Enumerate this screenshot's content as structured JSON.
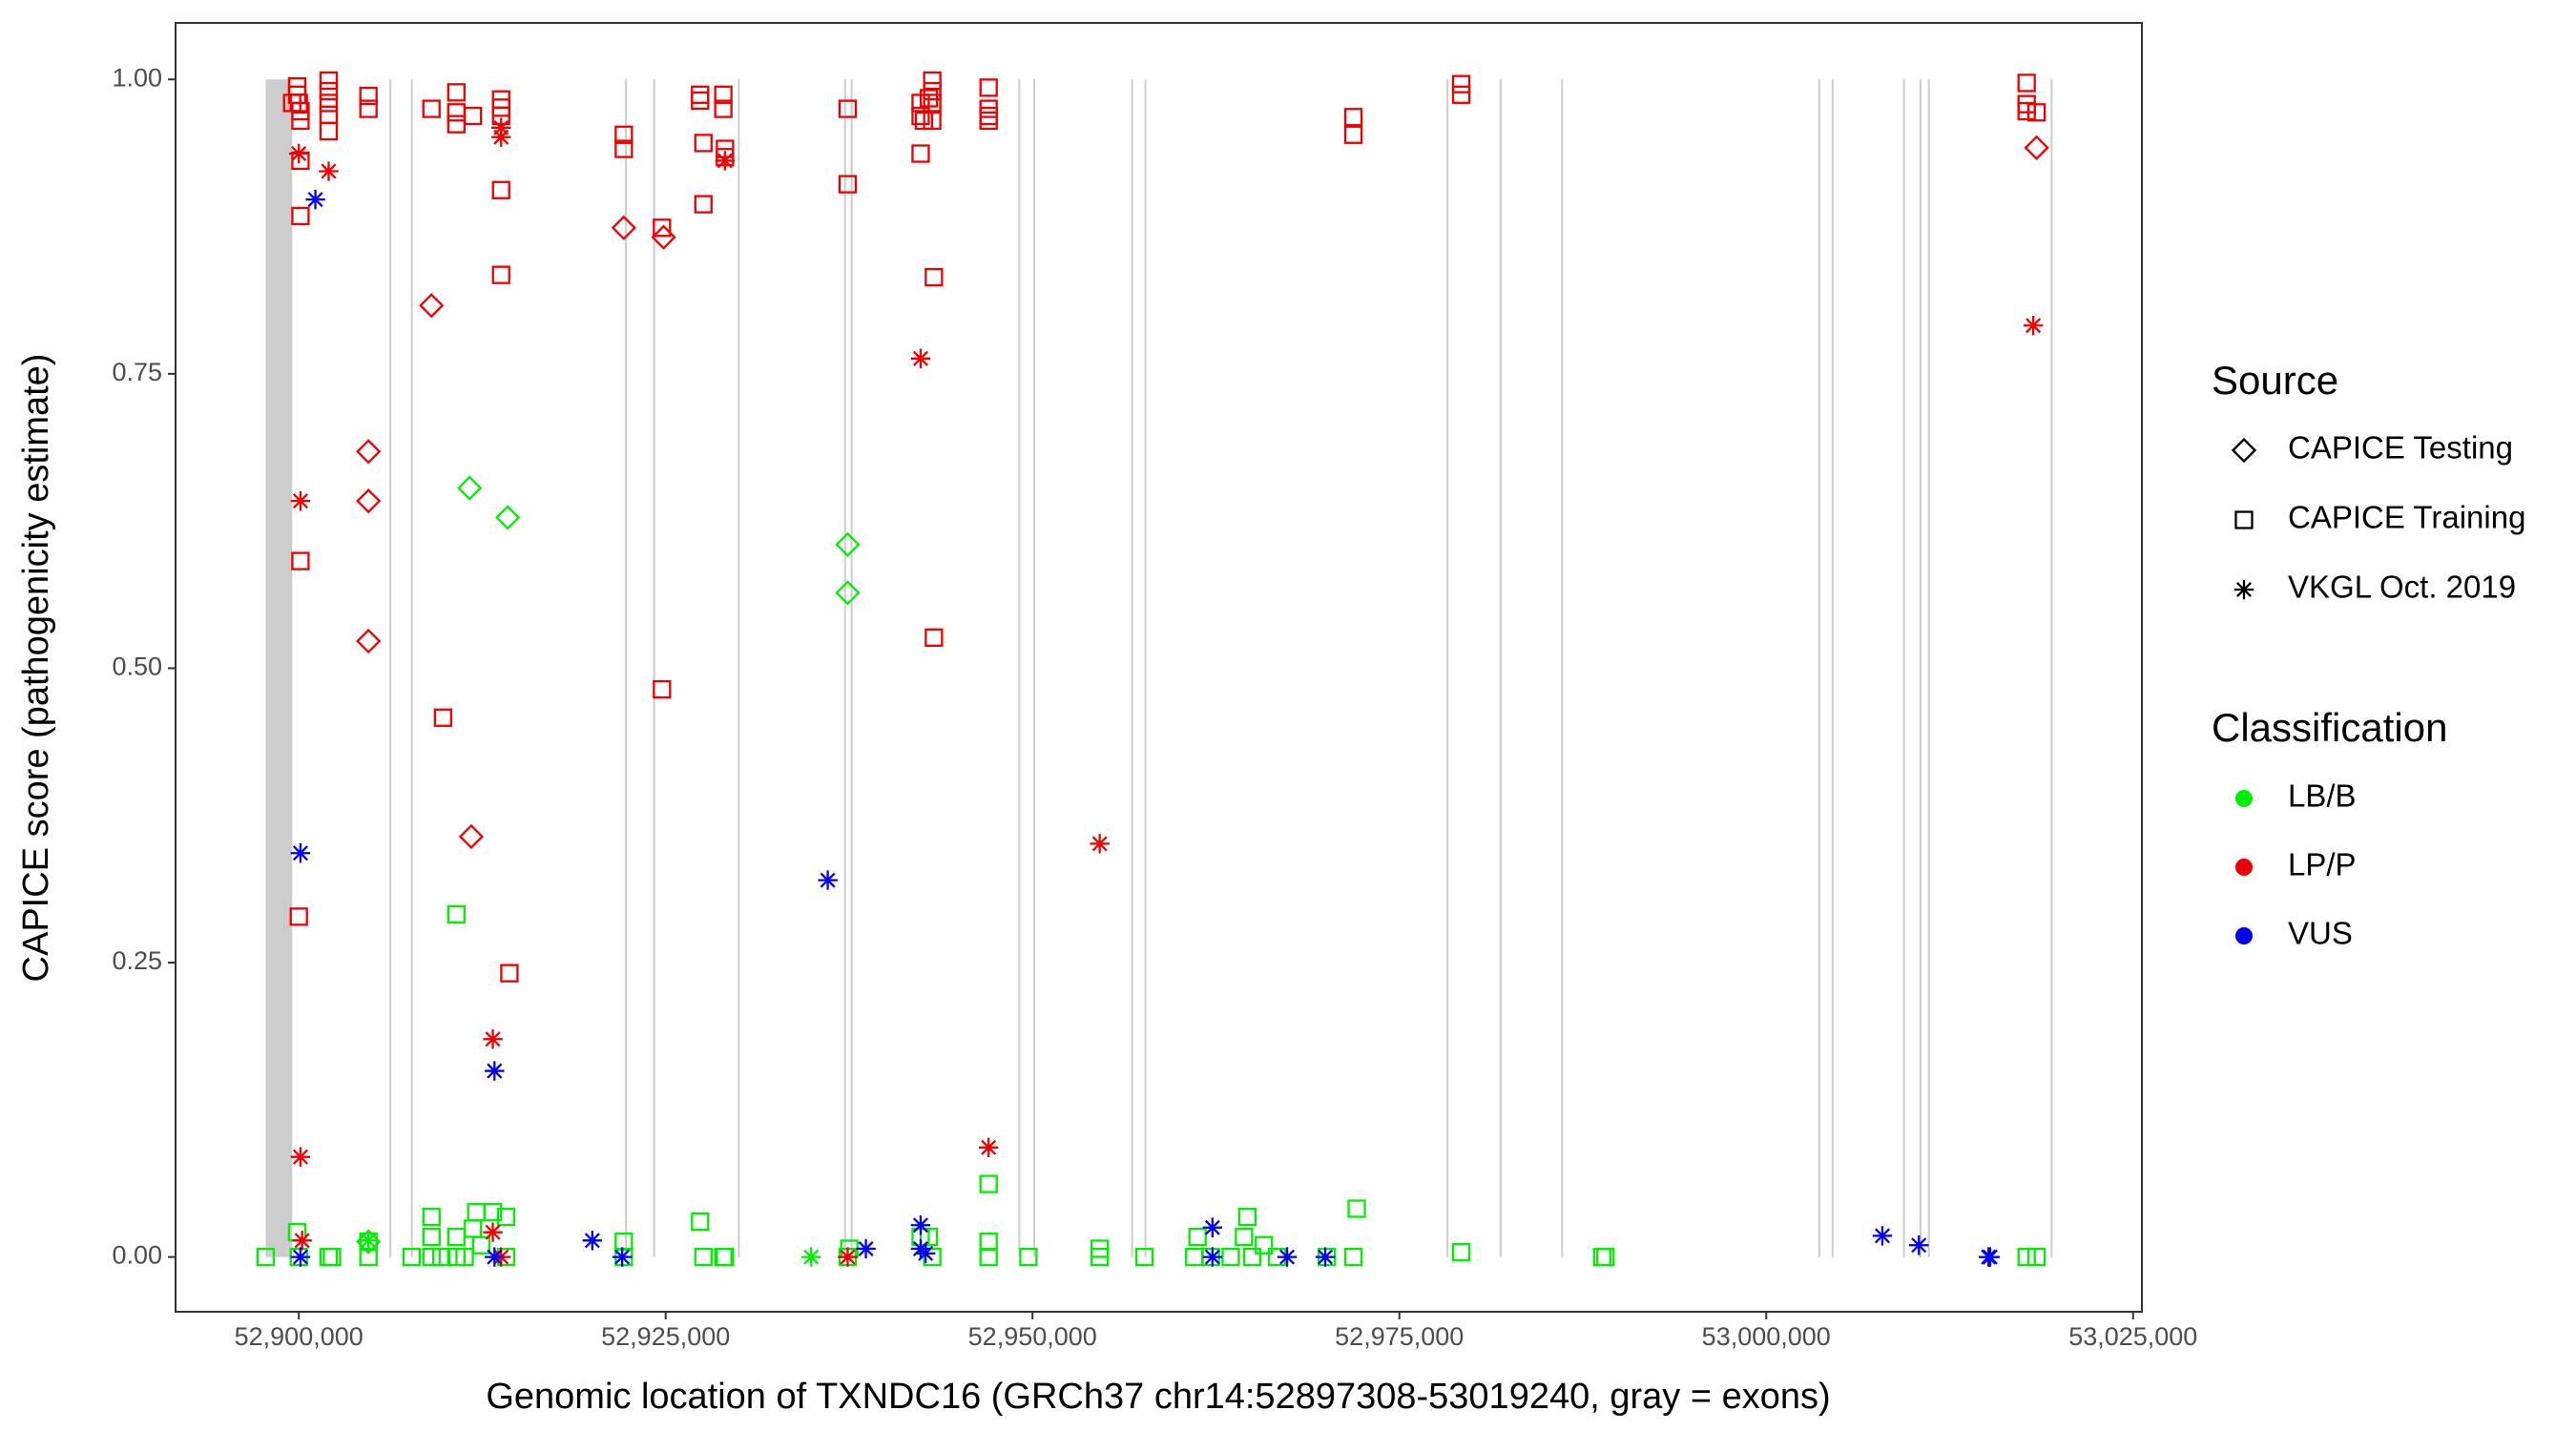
{
  "chart_data": {
    "type": "scatter",
    "xlabel": "Genomic location of TXNDC16 (GRCh37 chr14:52897308-53019240, gray = exons)",
    "ylabel": "CAPICE score (pathogenicity estimate)",
    "xlim": [
      52891600,
      53025600
    ],
    "ylim": [
      -0.0465,
      1.048
    ],
    "xticks": [
      {
        "value": 52900000,
        "label": "52,900,000"
      },
      {
        "value": 52925000,
        "label": "52,925,000"
      },
      {
        "value": 52950000,
        "label": "52,950,000"
      },
      {
        "value": 52975000,
        "label": "52,975,000"
      },
      {
        "value": 53000000,
        "label": "53,000,000"
      },
      {
        "value": 53025000,
        "label": "53,025,000"
      }
    ],
    "yticks": [
      {
        "value": 0,
        "label": "0.00"
      },
      {
        "value": 0.25,
        "label": "0.25"
      },
      {
        "value": 0.5,
        "label": "0.50"
      },
      {
        "value": 0.75,
        "label": "0.75"
      },
      {
        "value": 1,
        "label": "1.00"
      }
    ],
    "grid": false,
    "exon_color": "#cccccc",
    "exons": [
      [
        52897738,
        52899548
      ],
      [
        52906170,
        52906270
      ],
      [
        52907640,
        52907740
      ],
      [
        52922230,
        52922330
      ],
      [
        52924150,
        52924250
      ],
      [
        52929920,
        52930020
      ],
      [
        52937160,
        52937260
      ],
      [
        52937610,
        52937710
      ],
      [
        52949035,
        52949135
      ],
      [
        52950050,
        52950150
      ],
      [
        52956725,
        52956825
      ],
      [
        52957630,
        52957730
      ],
      [
        52978215,
        52978315
      ],
      [
        52981835,
        52981935
      ],
      [
        52986020,
        52986120
      ],
      [
        53003550,
        53003650
      ],
      [
        53004455,
        53004555
      ],
      [
        53009320,
        53009420
      ],
      [
        53010450,
        53010550
      ],
      [
        53011015,
        53011115
      ],
      [
        53019385,
        53019485
      ]
    ],
    "source_legend": {
      "title": "Source",
      "entries": [
        {
          "name": "CAPICE Testing",
          "shape": "diamond"
        },
        {
          "name": "CAPICE Training",
          "shape": "square"
        },
        {
          "name": "VKGL Oct. 2019",
          "shape": "asterisk"
        }
      ]
    },
    "class_legend": {
      "title": "Classification",
      "entries": [
        {
          "name": "LB/B",
          "color": "#00ee00"
        },
        {
          "name": "LP/P",
          "color": "#ee0000"
        },
        {
          "name": "VUS",
          "color": "#0000ee"
        }
      ]
    },
    "series": [
      {
        "source": "CAPICE Training",
        "classification": "LP/P",
        "x": [
          52899887,
          52899887,
          52900000,
          52900113,
          52900113,
          52900113,
          52900113,
          52900113,
          52900000,
          52899548,
          52902034,
          52902034,
          52902034,
          52902034,
          52902034,
          52904746,
          52904746,
          52909040,
          52910735,
          52910735,
          52910735,
          52911865,
          52913786,
          52913786,
          52913786,
          52913786,
          52913786,
          52914351,
          52909831,
          52922148,
          52922148,
          52924747,
          52924747,
          52927346,
          52927346,
          52927572,
          52927572,
          52928928,
          52928928,
          52929041,
          52929041,
          52937403,
          52937403,
          52942375,
          52942375,
          52942375,
          52942601,
          52942940,
          52943166,
          52943166,
          52943166,
          52943166,
          52943279,
          52943279,
          52947008,
          52947008,
          52947008,
          52947008,
          52971868,
          52971868,
          52979213,
          52979213,
          53017746,
          53017746,
          53017746,
          53018424
        ],
        "y": [
          0.994,
          0.987,
          0.98,
          0.973,
          0.965,
          0.931,
          0.884,
          0.591,
          0.289,
          0.98,
          0.999,
          0.99,
          0.98,
          0.97,
          0.956,
          0.986,
          0.975,
          0.975,
          0.989,
          0.972,
          0.962,
          0.969,
          0.983,
          0.976,
          0.969,
          0.906,
          0.834,
          0.241,
          0.458,
          0.953,
          0.941,
          0.874,
          0.482,
          0.987,
          0.982,
          0.946,
          0.894,
          0.987,
          0.975,
          0.941,
          0.934,
          0.975,
          0.911,
          0.98,
          0.969,
          0.937,
          0.965,
          0.984,
          0.999,
          0.99,
          0.98,
          0.965,
          0.832,
          0.526,
          0.993,
          0.975,
          0.969,
          0.965,
          0.968,
          0.953,
          0.996,
          0.987,
          0.997,
          0.979,
          0.973,
          0.972
        ]
      },
      {
        "source": "CAPICE Training",
        "classification": "LB/B",
        "x": [
          52897740,
          52899887,
          52900000,
          52902034,
          52902260,
          52904746,
          52904746,
          52907684,
          52909040,
          52909040,
          52909040,
          52909718,
          52910735,
          52910735,
          52910735,
          52911300,
          52911865,
          52912091,
          52912430,
          52913221,
          52914125,
          52914125,
          52922148,
          52922148,
          52927346,
          52927572,
          52928928,
          52929041,
          52937403,
          52937516,
          52942375,
          52942940,
          52943166,
          52947008,
          52947008,
          52947008,
          52949720,
          52954579,
          52954579,
          52957630,
          52961020,
          52961246,
          52962150,
          52963506,
          52964410,
          52964636,
          52964975,
          52965766,
          52966670,
          52970060,
          52971868,
          52972094,
          52979213,
          52988818,
          52989044,
          53017746,
          53018424
        ],
        "y": [
          0,
          0.021,
          0,
          0,
          0,
          0.013,
          0,
          0,
          0.034,
          0.017,
          0,
          0,
          0.291,
          0.017,
          0,
          0,
          0.024,
          0.038,
          0.01,
          0.038,
          0.034,
          0,
          0.013,
          0,
          0.03,
          0,
          0,
          0,
          0,
          0.007,
          0.017,
          0.017,
          0,
          0.062,
          0.013,
          0,
          0,
          0.007,
          0,
          0,
          0,
          0.017,
          0,
          0,
          0.017,
          0.034,
          0,
          0.01,
          0,
          0,
          0,
          0.041,
          0.004,
          0,
          0,
          0,
          0
        ]
      },
      {
        "source": "CAPICE Testing",
        "classification": "LP/P",
        "x": [
          52904746,
          52904746,
          52904746,
          52909040,
          52911752,
          52922148,
          52924860,
          53018424
        ],
        "y": [
          0.684,
          0.642,
          0.523,
          0.808,
          0.357,
          0.874,
          0.866,
          0.942
        ]
      },
      {
        "source": "CAPICE Testing",
        "classification": "LB/B",
        "x": [
          52911639,
          52914238,
          52937403,
          52937403,
          52904746
        ],
        "y": [
          0.653,
          0.628,
          0.605,
          0.564,
          0.013
        ]
      },
      {
        "source": "VKGL Oct. 2019",
        "classification": "LP/P",
        "x": [
          52900000,
          52900113,
          52900113,
          52900226,
          52902034,
          52913786,
          52913786,
          52913221,
          52913221,
          52913786,
          52929041,
          52937403,
          52942375,
          52947008,
          52954579,
          53018198
        ],
        "y": [
          0.937,
          0.642,
          0.085,
          0.014,
          0.922,
          0.959,
          0.951,
          0.185,
          0.021,
          0,
          0.931,
          0,
          0.763,
          0.093,
          0.351,
          0.791
        ]
      },
      {
        "source": "VKGL Oct. 2019",
        "classification": "VUS",
        "x": [
          52901130,
          52900113,
          52900113,
          52913334,
          52913334,
          52920001,
          52922035,
          52936047,
          52938646,
          52942375,
          52942375,
          52942714,
          52962263,
          52962263,
          52967348,
          52969947,
          53007915,
          53010401,
          53015147,
          53015260
        ],
        "y": [
          0.898,
          0.343,
          0,
          0.158,
          0,
          0.014,
          0,
          0.32,
          0.007,
          0.027,
          0.007,
          0.003,
          0.025,
          0,
          0,
          0,
          0.018,
          0.01,
          0,
          0
        ]
      },
      {
        "source": "VKGL Oct. 2019",
        "classification": "LB/B",
        "x": [
          52934917,
          52904746
        ],
        "y": [
          0,
          0.014
        ]
      }
    ]
  }
}
